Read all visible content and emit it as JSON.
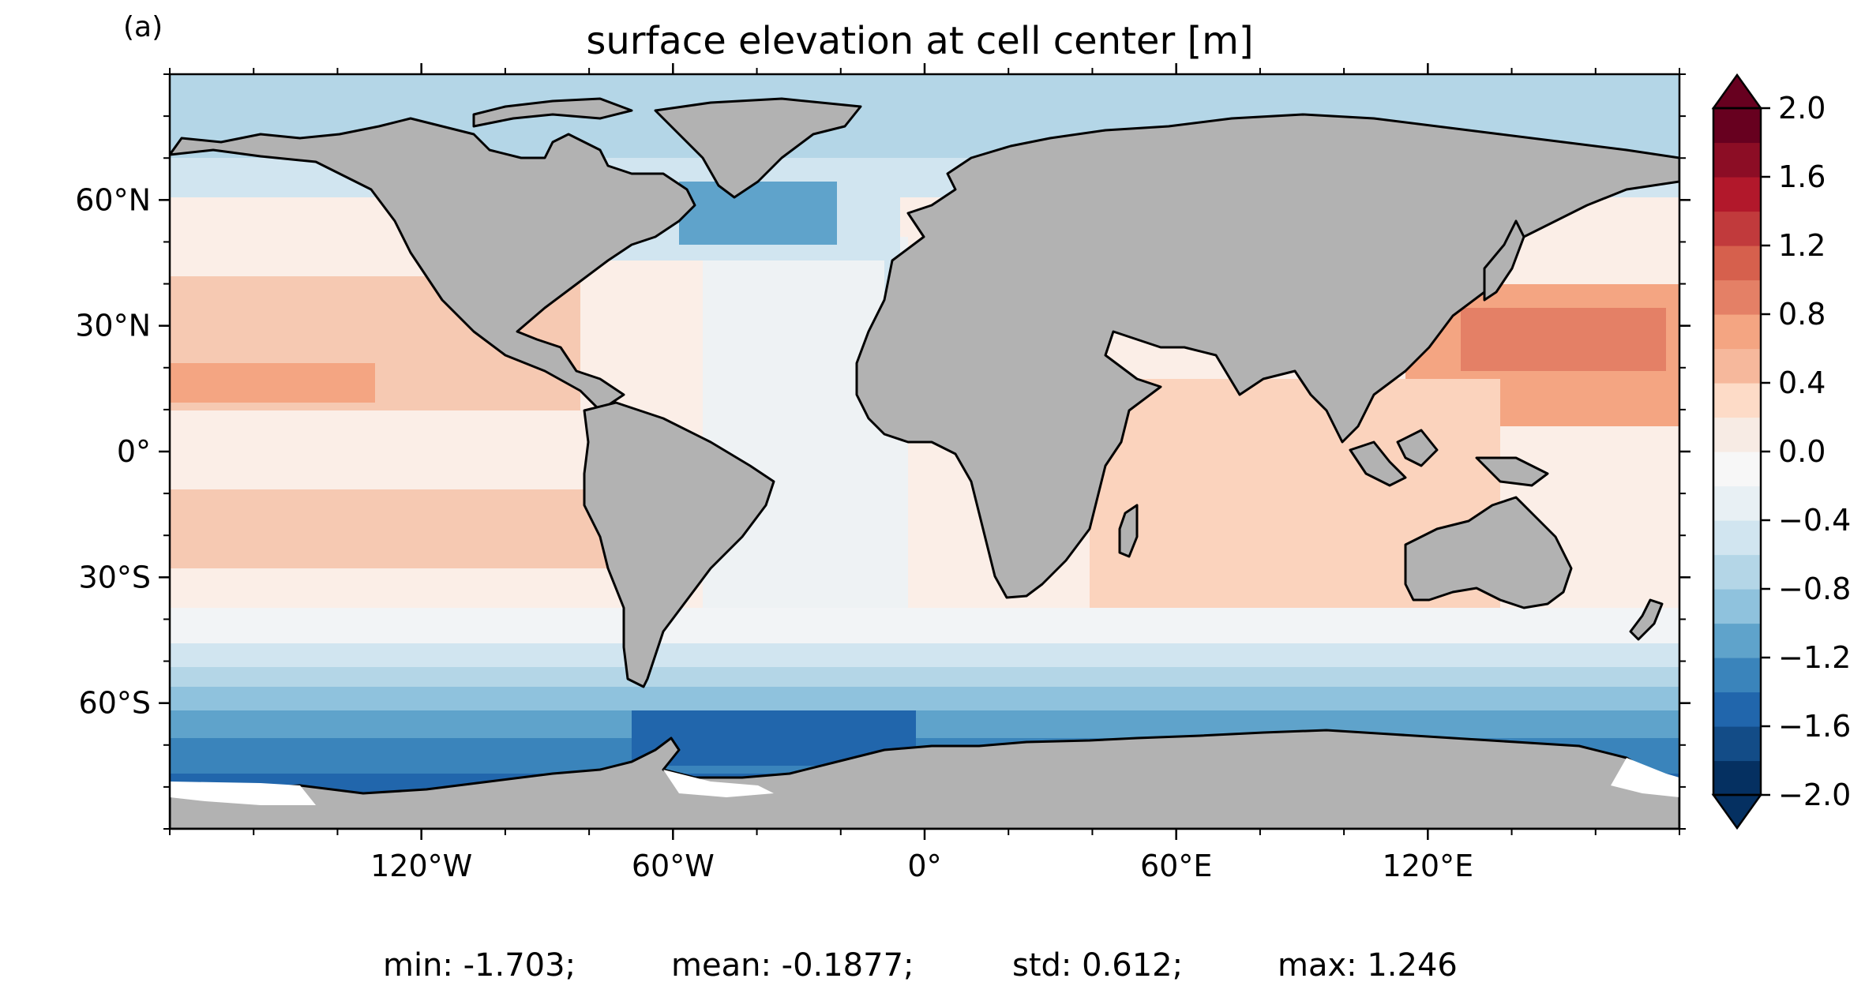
{
  "panel_label": "(a)",
  "title": "surface elevation at cell center [m]",
  "stats": {
    "min": "min: -1.703;",
    "mean": "mean: -0.1877;",
    "std": "std: 0.612;",
    "max": "max: 1.246"
  },
  "map": {
    "projection": "PlateCarree",
    "land_color": "#b2b2b2",
    "coastline_color": "#000000",
    "lon_range": [
      -180,
      180
    ],
    "lat_range": [
      -90,
      90
    ],
    "lon_ticks": [
      {
        "value": -120,
        "label": "120°W"
      },
      {
        "value": -60,
        "label": "60°W"
      },
      {
        "value": 0,
        "label": "0°"
      },
      {
        "value": 60,
        "label": "60°E"
      },
      {
        "value": 120,
        "label": "120°E"
      }
    ],
    "lat_ticks": [
      {
        "value": 60,
        "label": "60°N"
      },
      {
        "value": 30,
        "label": "30°N"
      },
      {
        "value": 0,
        "label": "0°"
      },
      {
        "value": -30,
        "label": "30°S"
      },
      {
        "value": -60,
        "label": "60°S"
      }
    ]
  },
  "colorbar": {
    "range": [
      -2.0,
      2.0
    ],
    "extend": "both",
    "tick_labels": [
      {
        "value": 2.0,
        "label": "2.0"
      },
      {
        "value": 1.6,
        "label": "1.6"
      },
      {
        "value": 1.2,
        "label": "1.2"
      },
      {
        "value": 0.8,
        "label": "0.8"
      },
      {
        "value": 0.4,
        "label": "0.4"
      },
      {
        "value": 0.0,
        "label": "0.0"
      },
      {
        "value": -0.4,
        "label": "−0.4"
      },
      {
        "value": -0.8,
        "label": "−0.8"
      },
      {
        "value": -1.2,
        "label": "−1.2"
      },
      {
        "value": -1.6,
        "label": "−1.6"
      },
      {
        "value": -2.0,
        "label": "−2.0"
      }
    ],
    "colors": [
      "#053061",
      "#134c87",
      "#2166ac",
      "#3a84bb",
      "#5fa3cb",
      "#8fc2dd",
      "#b4d6e7",
      "#d1e5f0",
      "#e8f0f4",
      "#f7f7f7",
      "#f7ebe4",
      "#fddbc7",
      "#f6b89c",
      "#f4a582",
      "#e48066",
      "#d6604d",
      "#c13a3c",
      "#b2182b",
      "#8c0d25",
      "#67001f"
    ]
  }
}
